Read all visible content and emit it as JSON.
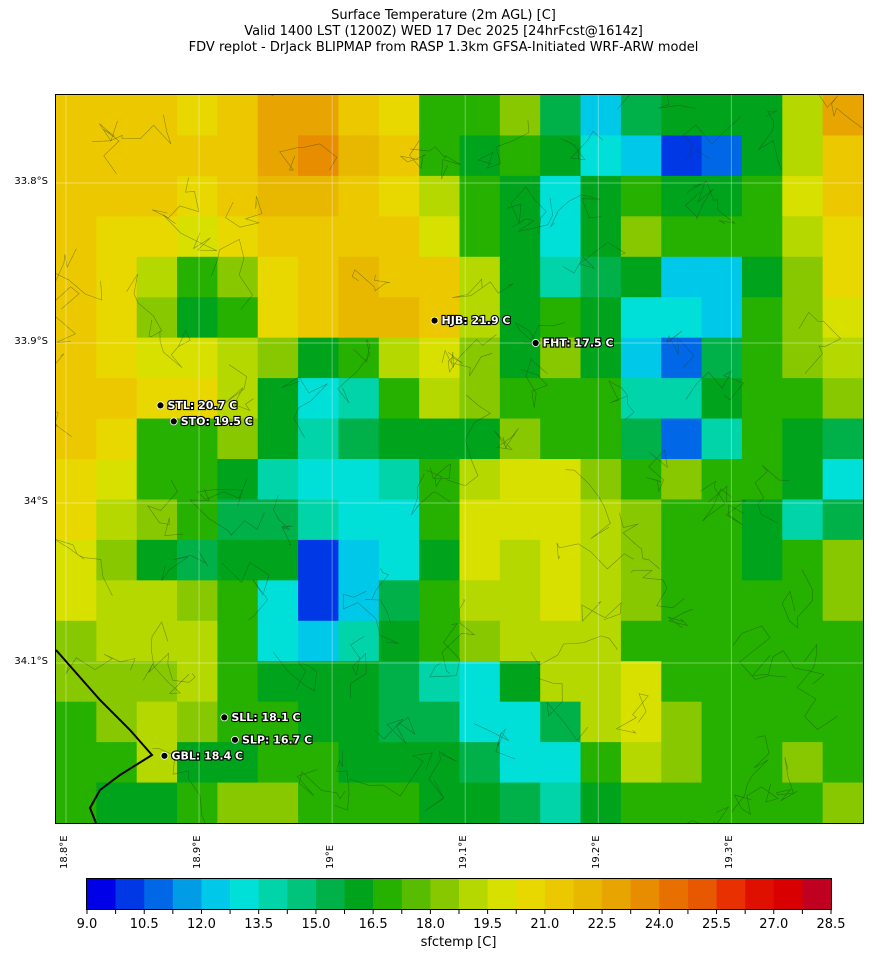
{
  "title": {
    "line1": "Surface Temperature (2m AGL) [C]",
    "line2": "Valid 1400 LST (1200Z) WED 17 Dec 2025 [24hrFcst@1614z]",
    "line3": "FDV replot - DrJack BLIPMAP from RASP 1.3km GFSA-Initiated WRF-ARW model"
  },
  "map": {
    "lon_range": [
      18.7925,
      19.399
    ],
    "lat_range": [
      33.745,
      34.2
    ],
    "lat_ticks": [
      {
        "value": 33.8,
        "label": "33.8°S"
      },
      {
        "value": 33.9,
        "label": "33.9°S"
      },
      {
        "value": 34.0,
        "label": "34°S"
      },
      {
        "value": 34.1,
        "label": "34.1°S"
      }
    ],
    "lon_ticks": [
      {
        "value": 18.8,
        "label": "18.8°E"
      },
      {
        "value": 18.9,
        "label": "18.9°E"
      },
      {
        "value": 19.0,
        "label": "19°E"
      },
      {
        "value": 19.1,
        "label": "19.1°E"
      },
      {
        "value": 19.2,
        "label": "19.2°E"
      },
      {
        "value": 19.3,
        "label": "19.3°E"
      }
    ],
    "temperature_grid": [
      [
        21.5,
        21.5,
        21,
        20.5,
        21.5,
        22.5,
        23,
        21.5,
        20.5,
        17,
        17,
        18,
        15,
        12,
        15,
        16,
        16,
        16,
        19,
        22.5
      ],
      [
        21.5,
        21,
        21,
        21,
        21.5,
        23,
        23.5,
        22,
        21,
        17,
        16,
        17,
        16,
        13,
        12,
        10,
        11,
        16,
        19,
        21
      ],
      [
        21,
        21,
        21,
        20.5,
        21.5,
        22,
        22,
        21,
        20.5,
        19,
        17,
        16,
        13,
        16,
        17,
        16,
        16,
        17,
        20,
        21
      ],
      [
        21,
        20.5,
        20.5,
        20,
        20.5,
        21,
        21,
        21,
        21,
        20,
        17,
        16,
        13,
        16,
        18,
        17,
        17,
        17,
        19,
        20.5
      ],
      [
        21,
        20.5,
        19,
        17,
        18,
        20.5,
        21.5,
        22,
        21.5,
        21,
        19,
        16,
        14,
        15,
        16,
        12,
        12,
        16,
        18,
        20.5
      ],
      [
        21,
        20.5,
        18,
        16,
        17,
        20.5,
        21,
        22,
        22,
        21,
        19,
        16,
        17,
        16,
        13,
        13,
        12,
        17,
        18,
        20
      ],
      [
        21,
        20.5,
        20,
        20,
        19,
        18,
        16,
        17,
        19,
        20,
        18,
        16,
        18,
        16,
        12,
        11,
        15,
        17,
        18,
        19
      ],
      [
        21,
        21,
        20.5,
        20.5,
        19,
        16,
        13,
        14,
        17,
        19,
        18,
        17,
        17,
        17,
        14,
        14,
        16,
        17,
        17,
        18
      ],
      [
        21,
        20.5,
        17,
        17,
        18,
        16,
        14,
        15,
        16,
        16,
        16,
        18,
        17,
        17,
        15,
        11,
        14,
        17,
        16,
        15
      ],
      [
        20.5,
        20,
        17,
        17,
        16,
        14,
        13,
        13,
        14,
        17,
        19,
        20,
        20,
        18,
        17,
        18,
        17,
        17,
        16,
        13
      ],
      [
        20.5,
        19,
        18,
        17,
        15,
        15,
        14,
        13,
        13,
        17,
        20,
        20,
        20,
        19,
        18,
        17,
        17,
        16,
        14,
        15
      ],
      [
        20,
        18,
        16,
        15,
        16,
        16,
        10,
        12,
        13,
        16,
        20,
        19,
        20,
        19,
        18,
        17,
        17,
        16,
        17,
        18
      ],
      [
        20,
        19,
        19,
        18,
        17,
        13,
        10,
        12,
        15,
        17,
        19,
        19,
        20,
        19,
        18,
        17,
        17,
        17,
        17,
        18
      ],
      [
        18,
        19,
        19,
        19,
        17,
        13,
        12,
        14,
        16,
        17,
        18,
        19,
        19,
        19,
        17,
        17,
        17,
        17,
        17,
        17
      ],
      [
        18,
        18,
        18,
        19,
        17,
        16,
        16,
        16,
        15,
        14,
        13,
        16,
        19,
        19,
        20,
        17,
        17,
        17,
        17,
        17
      ],
      [
        17,
        18,
        19,
        18,
        17,
        17,
        16,
        16,
        15,
        15,
        13,
        13,
        15,
        19,
        20,
        18,
        17,
        17,
        17,
        17
      ],
      [
        17,
        17,
        19,
        16,
        16,
        17,
        17,
        16,
        16,
        16,
        15,
        13,
        13,
        17,
        19,
        18,
        17,
        17,
        18,
        17
      ],
      [
        17,
        16,
        16,
        17,
        18,
        18,
        17,
        17,
        17,
        16,
        16,
        15,
        14,
        16,
        17,
        17,
        17,
        17,
        17,
        18
      ]
    ],
    "stations": [
      {
        "id": "HJB",
        "label": "HJB: 21.9 C",
        "lon": 19.077,
        "lat": 33.886
      },
      {
        "id": "FHT",
        "label": "FHT: 17.5 C",
        "lon": 19.153,
        "lat": 33.9
      },
      {
        "id": "STL",
        "label": "STL: 20.7 C",
        "lon": 18.871,
        "lat": 33.939
      },
      {
        "id": "STO",
        "label": "STO: 19.5 C",
        "lon": 18.881,
        "lat": 33.949
      },
      {
        "id": "SLL",
        "label": "SLL: 18.1 C",
        "lon": 18.919,
        "lat": 34.134
      },
      {
        "id": "SLP",
        "label": "SLP: 16.7 C",
        "lon": 18.927,
        "lat": 34.148
      },
      {
        "id": "GBL",
        "label": "GBL: 18.4 C",
        "lon": 18.874,
        "lat": 34.158
      }
    ]
  },
  "colorbar": {
    "label": "sfctemp [C]",
    "min": 9.0,
    "max": 28.5,
    "step": 0.75,
    "tick_labels": [
      "9.0",
      "10.5",
      "12.0",
      "13.5",
      "15.0",
      "16.5",
      "18.0",
      "19.5",
      "21.0",
      "22.5",
      "24.0",
      "25.5",
      "27.0",
      "28.5"
    ],
    "colors": [
      "#0000e8",
      "#0038e6",
      "#0068e6",
      "#009ce6",
      "#00c8e8",
      "#00e0d8",
      "#00d4a8",
      "#00c47c",
      "#00b048",
      "#00a41c",
      "#26b000",
      "#58bc00",
      "#88c800",
      "#b4d800",
      "#d8e000",
      "#e8d800",
      "#ecc800",
      "#e8b800",
      "#e8a400",
      "#e88c00",
      "#e87000",
      "#e85800",
      "#e83000",
      "#e01000",
      "#d80000",
      "#c00020"
    ]
  }
}
